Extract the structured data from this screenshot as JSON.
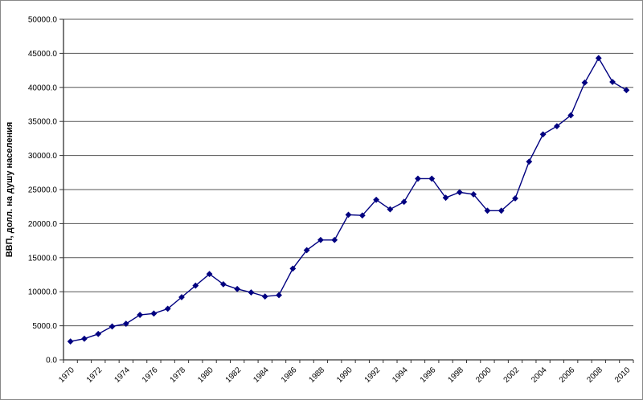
{
  "chart_data": {
    "type": "line",
    "title": "",
    "xlabel": "",
    "ylabel": "ВВП, долл. на душу населения",
    "x": [
      "1970",
      "1971",
      "1972",
      "1973",
      "1974",
      "1975",
      "1976",
      "1977",
      "1978",
      "1979",
      "1980",
      "1981",
      "1982",
      "1983",
      "1984",
      "1985",
      "1986",
      "1987",
      "1988",
      "1989",
      "1990",
      "1991",
      "1992",
      "1993",
      "1994",
      "1995",
      "1996",
      "1997",
      "1998",
      "1999",
      "2000",
      "2001",
      "2002",
      "2003",
      "2004",
      "2005",
      "2006",
      "2007",
      "2008",
      "2009",
      "2010"
    ],
    "values": [
      2700,
      3100,
      3800,
      4900,
      5300,
      6600,
      6800,
      7500,
      9200,
      10900,
      12600,
      11100,
      10400,
      9900,
      9300,
      9500,
      13400,
      16100,
      17600,
      17600,
      21300,
      21200,
      23500,
      22100,
      23200,
      26600,
      26600,
      23800,
      24600,
      24300,
      21900,
      21900,
      23700,
      29100,
      33100,
      34300,
      35900,
      40700,
      44300,
      40800,
      39600
    ],
    "ylim": [
      0,
      50000
    ],
    "ytick_step": 5000,
    "ytick_labels": [
      "0.0",
      "5000.0",
      "10000.0",
      "15000.0",
      "20000.0",
      "25000.0",
      "30000.0",
      "35000.0",
      "40000.0",
      "45000.0",
      "50000.0"
    ],
    "xtick_label_every": 2,
    "grid": "horizontal",
    "legend": "none",
    "line_color": "#000080",
    "marker": "diamond",
    "grid_color": "#555555",
    "axis_color": "#333333"
  }
}
